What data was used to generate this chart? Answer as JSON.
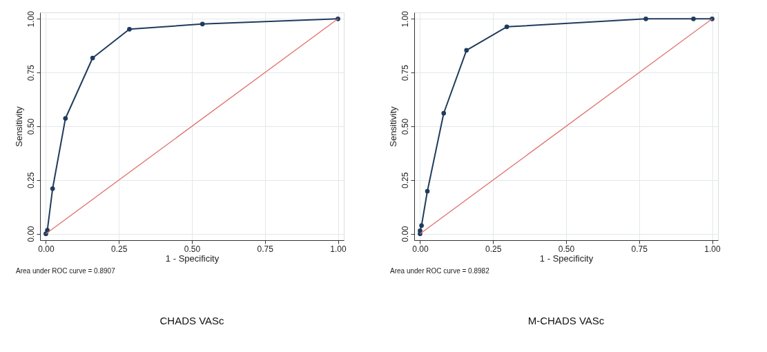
{
  "chart_data": [
    {
      "type": "line",
      "title": "CHADS VASc",
      "xlabel": "1 - Specificity",
      "ylabel": "Sensitivity",
      "annotations": [
        "Area under ROC curve = 0.8907"
      ],
      "marker": "none",
      "grid": true,
      "xlim": [
        -0.02,
        1.02
      ],
      "ylim": [
        -0.03,
        1.03
      ],
      "xticks": [
        {
          "value": 0,
          "label": "0.00"
        },
        {
          "value": 0.25,
          "label": "0.25"
        },
        {
          "value": 0.5,
          "label": "0.50"
        },
        {
          "value": 0.75,
          "label": "0.75"
        },
        {
          "value": 1,
          "label": "1.00"
        }
      ],
      "yticks": [
        {
          "value": 0,
          "label": "0.00"
        },
        {
          "value": 0.25,
          "label": "0.25"
        },
        {
          "value": 0.5,
          "label": "0.50"
        },
        {
          "value": 0.75,
          "label": "0.75"
        },
        {
          "value": 1,
          "label": "1.00"
        }
      ],
      "series": [
        {
          "color": "#1f3b5c",
          "marker": "circle",
          "x": [
            0,
            0.005,
            0.023,
            0.067,
            0.16,
            0.286,
            0.536,
            1
          ],
          "values": [
            0,
            0.016,
            0.21,
            0.537,
            0.818,
            0.952,
            0.976,
            1
          ]
        },
        {
          "color": "#e0706a",
          "x": [
            0,
            1
          ],
          "values": [
            0,
            1
          ]
        }
      ]
    },
    {
      "type": "line",
      "title": "M-CHADS VASc",
      "xlabel": "1 - Specificity",
      "ylabel": "Sensitivity",
      "annotations": [
        "Area under ROC curve = 0.8982"
      ],
      "marker": "none",
      "grid": true,
      "xlim": [
        -0.02,
        1.02
      ],
      "ylim": [
        -0.03,
        1.03
      ],
      "xticks": [
        {
          "value": 0,
          "label": "0.00"
        },
        {
          "value": 0.25,
          "label": "0.25"
        },
        {
          "value": 0.5,
          "label": "0.50"
        },
        {
          "value": 0.75,
          "label": "0.75"
        },
        {
          "value": 1,
          "label": "1.00"
        }
      ],
      "yticks": [
        {
          "value": 0,
          "label": "0.00"
        },
        {
          "value": 0.25,
          "label": "0.25"
        },
        {
          "value": 0.5,
          "label": "0.50"
        },
        {
          "value": 0.75,
          "label": "0.75"
        },
        {
          "value": 1,
          "label": "1.00"
        }
      ],
      "series": [
        {
          "color": "#1f3b5c",
          "marker": "circle",
          "x": [
            0,
            0,
            0.005,
            0.025,
            0.081,
            0.159,
            0.297,
            0.773,
            0.936,
            1
          ],
          "values": [
            0,
            0.014,
            0.038,
            0.198,
            0.561,
            0.854,
            0.963,
            1,
            1,
            1
          ]
        },
        {
          "color": "#e0706a",
          "x": [
            0,
            1
          ],
          "values": [
            0,
            1
          ]
        }
      ]
    }
  ]
}
